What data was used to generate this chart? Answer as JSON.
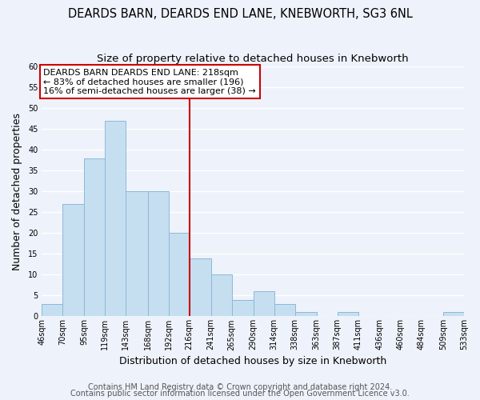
{
  "title": "DEARDS BARN, DEARDS END LANE, KNEBWORTH, SG3 6NL",
  "subtitle": "Size of property relative to detached houses in Knebworth",
  "xlabel": "Distribution of detached houses by size in Knebworth",
  "ylabel": "Number of detached properties",
  "bar_edges": [
    46,
    70,
    95,
    119,
    143,
    168,
    192,
    216,
    241,
    265,
    290,
    314,
    338,
    363,
    387,
    411,
    436,
    460,
    484,
    509,
    533
  ],
  "bar_heights": [
    3,
    27,
    38,
    47,
    30,
    30,
    20,
    14,
    10,
    4,
    6,
    3,
    1,
    0,
    1,
    0,
    0,
    0,
    0,
    1
  ],
  "bar_color": "#c6dff0",
  "bar_edgecolor": "#8cb8d8",
  "vline_x": 216,
  "vline_color": "#cc0000",
  "annotation_text": "DEARDS BARN DEARDS END LANE: 218sqm\n← 83% of detached houses are smaller (196)\n16% of semi-detached houses are larger (38) →",
  "annotation_box_edgecolor": "#cc0000",
  "annotation_box_facecolor": "#ffffff",
  "ylim": [
    0,
    60
  ],
  "tick_labels": [
    "46sqm",
    "70sqm",
    "95sqm",
    "119sqm",
    "143sqm",
    "168sqm",
    "192sqm",
    "216sqm",
    "241sqm",
    "265sqm",
    "290sqm",
    "314sqm",
    "338sqm",
    "363sqm",
    "387sqm",
    "411sqm",
    "436sqm",
    "460sqm",
    "484sqm",
    "509sqm",
    "533sqm"
  ],
  "footnote1": "Contains HM Land Registry data © Crown copyright and database right 2024.",
  "footnote2": "Contains public sector information licensed under the Open Government Licence v3.0.",
  "title_fontsize": 10.5,
  "subtitle_fontsize": 9.5,
  "axis_label_fontsize": 9,
  "tick_fontsize": 7,
  "annotation_fontsize": 8,
  "footnote_fontsize": 7,
  "background_color": "#eef2fb",
  "grid_color": "#ffffff",
  "yticks": [
    0,
    5,
    10,
    15,
    20,
    25,
    30,
    35,
    40,
    45,
    50,
    55,
    60
  ]
}
